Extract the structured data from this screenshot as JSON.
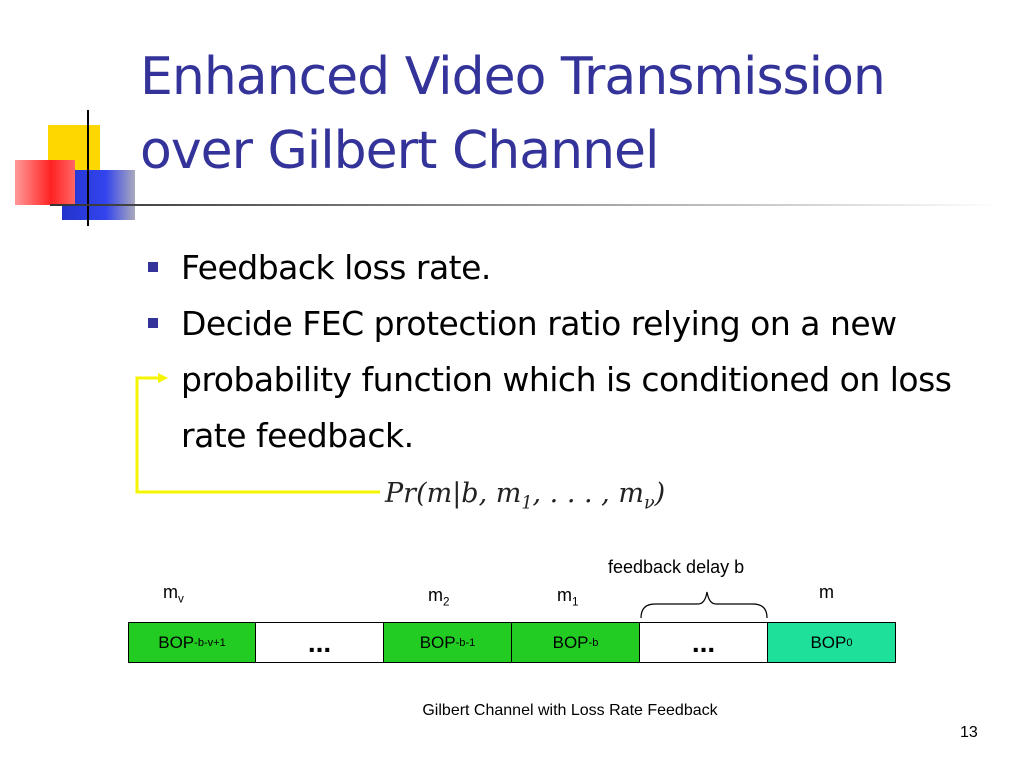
{
  "header": {
    "title_lines": [
      "Enhanced Video Transmission",
      "over Gilbert Channel"
    ]
  },
  "bullets": [
    "Feedback loss rate.",
    "Decide FEC protection ratio relying on a new probability function which is conditioned on loss rate feedback."
  ],
  "formula": [
    "Pr(m|b, m",
    "1",
    ", . . . , m",
    "ν",
    ")"
  ],
  "diagram": {
    "delay_label": "feedback delay b",
    "markers": [
      {
        "base": "m",
        "sub": "v"
      },
      {
        "base": "m",
        "sub": "2"
      },
      {
        "base": "m",
        "sub": "1"
      },
      {
        "base": "m"
      }
    ],
    "boxes": [
      {
        "base": "BOP",
        "sub": "-b-v+1",
        "fill": "#22cc22"
      },
      {
        "base": "...",
        "fill": "#ffffff"
      },
      {
        "base": "BOP",
        "sub": "-b-1",
        "fill": "#22cc22"
      },
      {
        "base": "BOP",
        "sub": "-b",
        "fill": "#22cc22"
      },
      {
        "base": "...",
        "fill": "#ffffff"
      },
      {
        "base": "BOP",
        "sub": "0",
        "fill": "#1ee09a"
      }
    ]
  },
  "footer": {
    "text": "Gilbert Channel with Loss Rate Feedback",
    "page": "13"
  }
}
